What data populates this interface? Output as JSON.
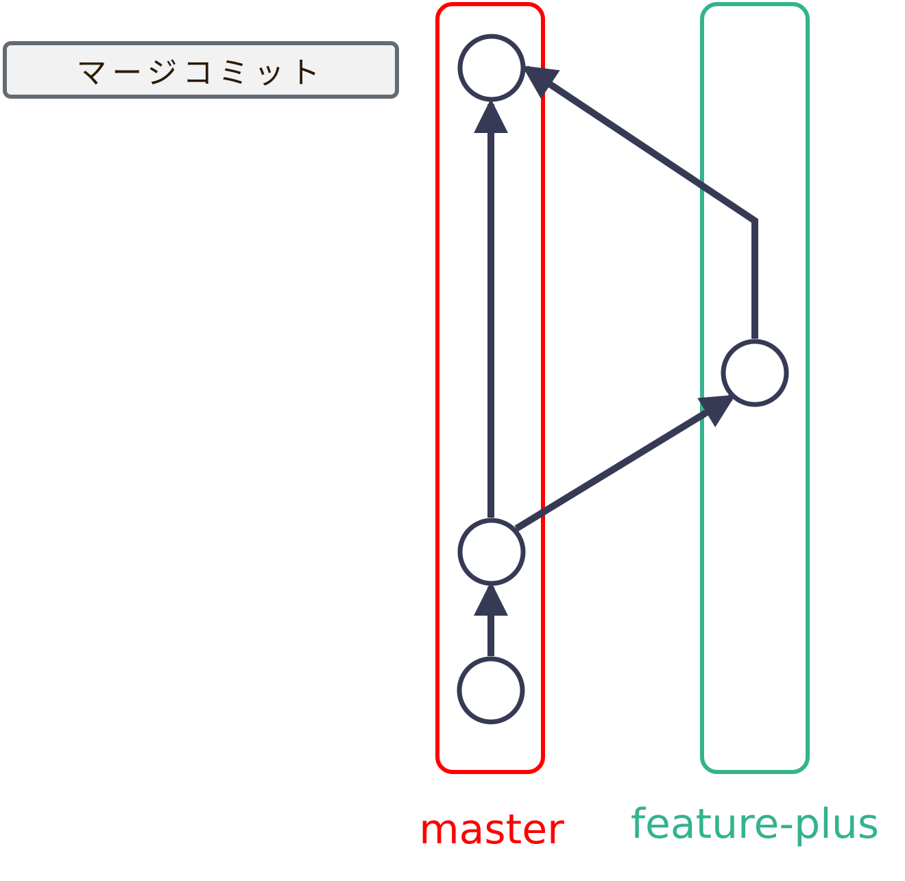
{
  "title_box": {
    "text": "マージコミット"
  },
  "branches": [
    {
      "name": "master",
      "color": "#ff0000"
    },
    {
      "name": "feature-plus",
      "color": "#33b38e"
    }
  ],
  "colors": {
    "node_stroke": "#363a55",
    "arrow": "#363a55",
    "box_border": "#646b72",
    "box_fill": "#f2f2f2",
    "title_text": "#2b1a06"
  }
}
